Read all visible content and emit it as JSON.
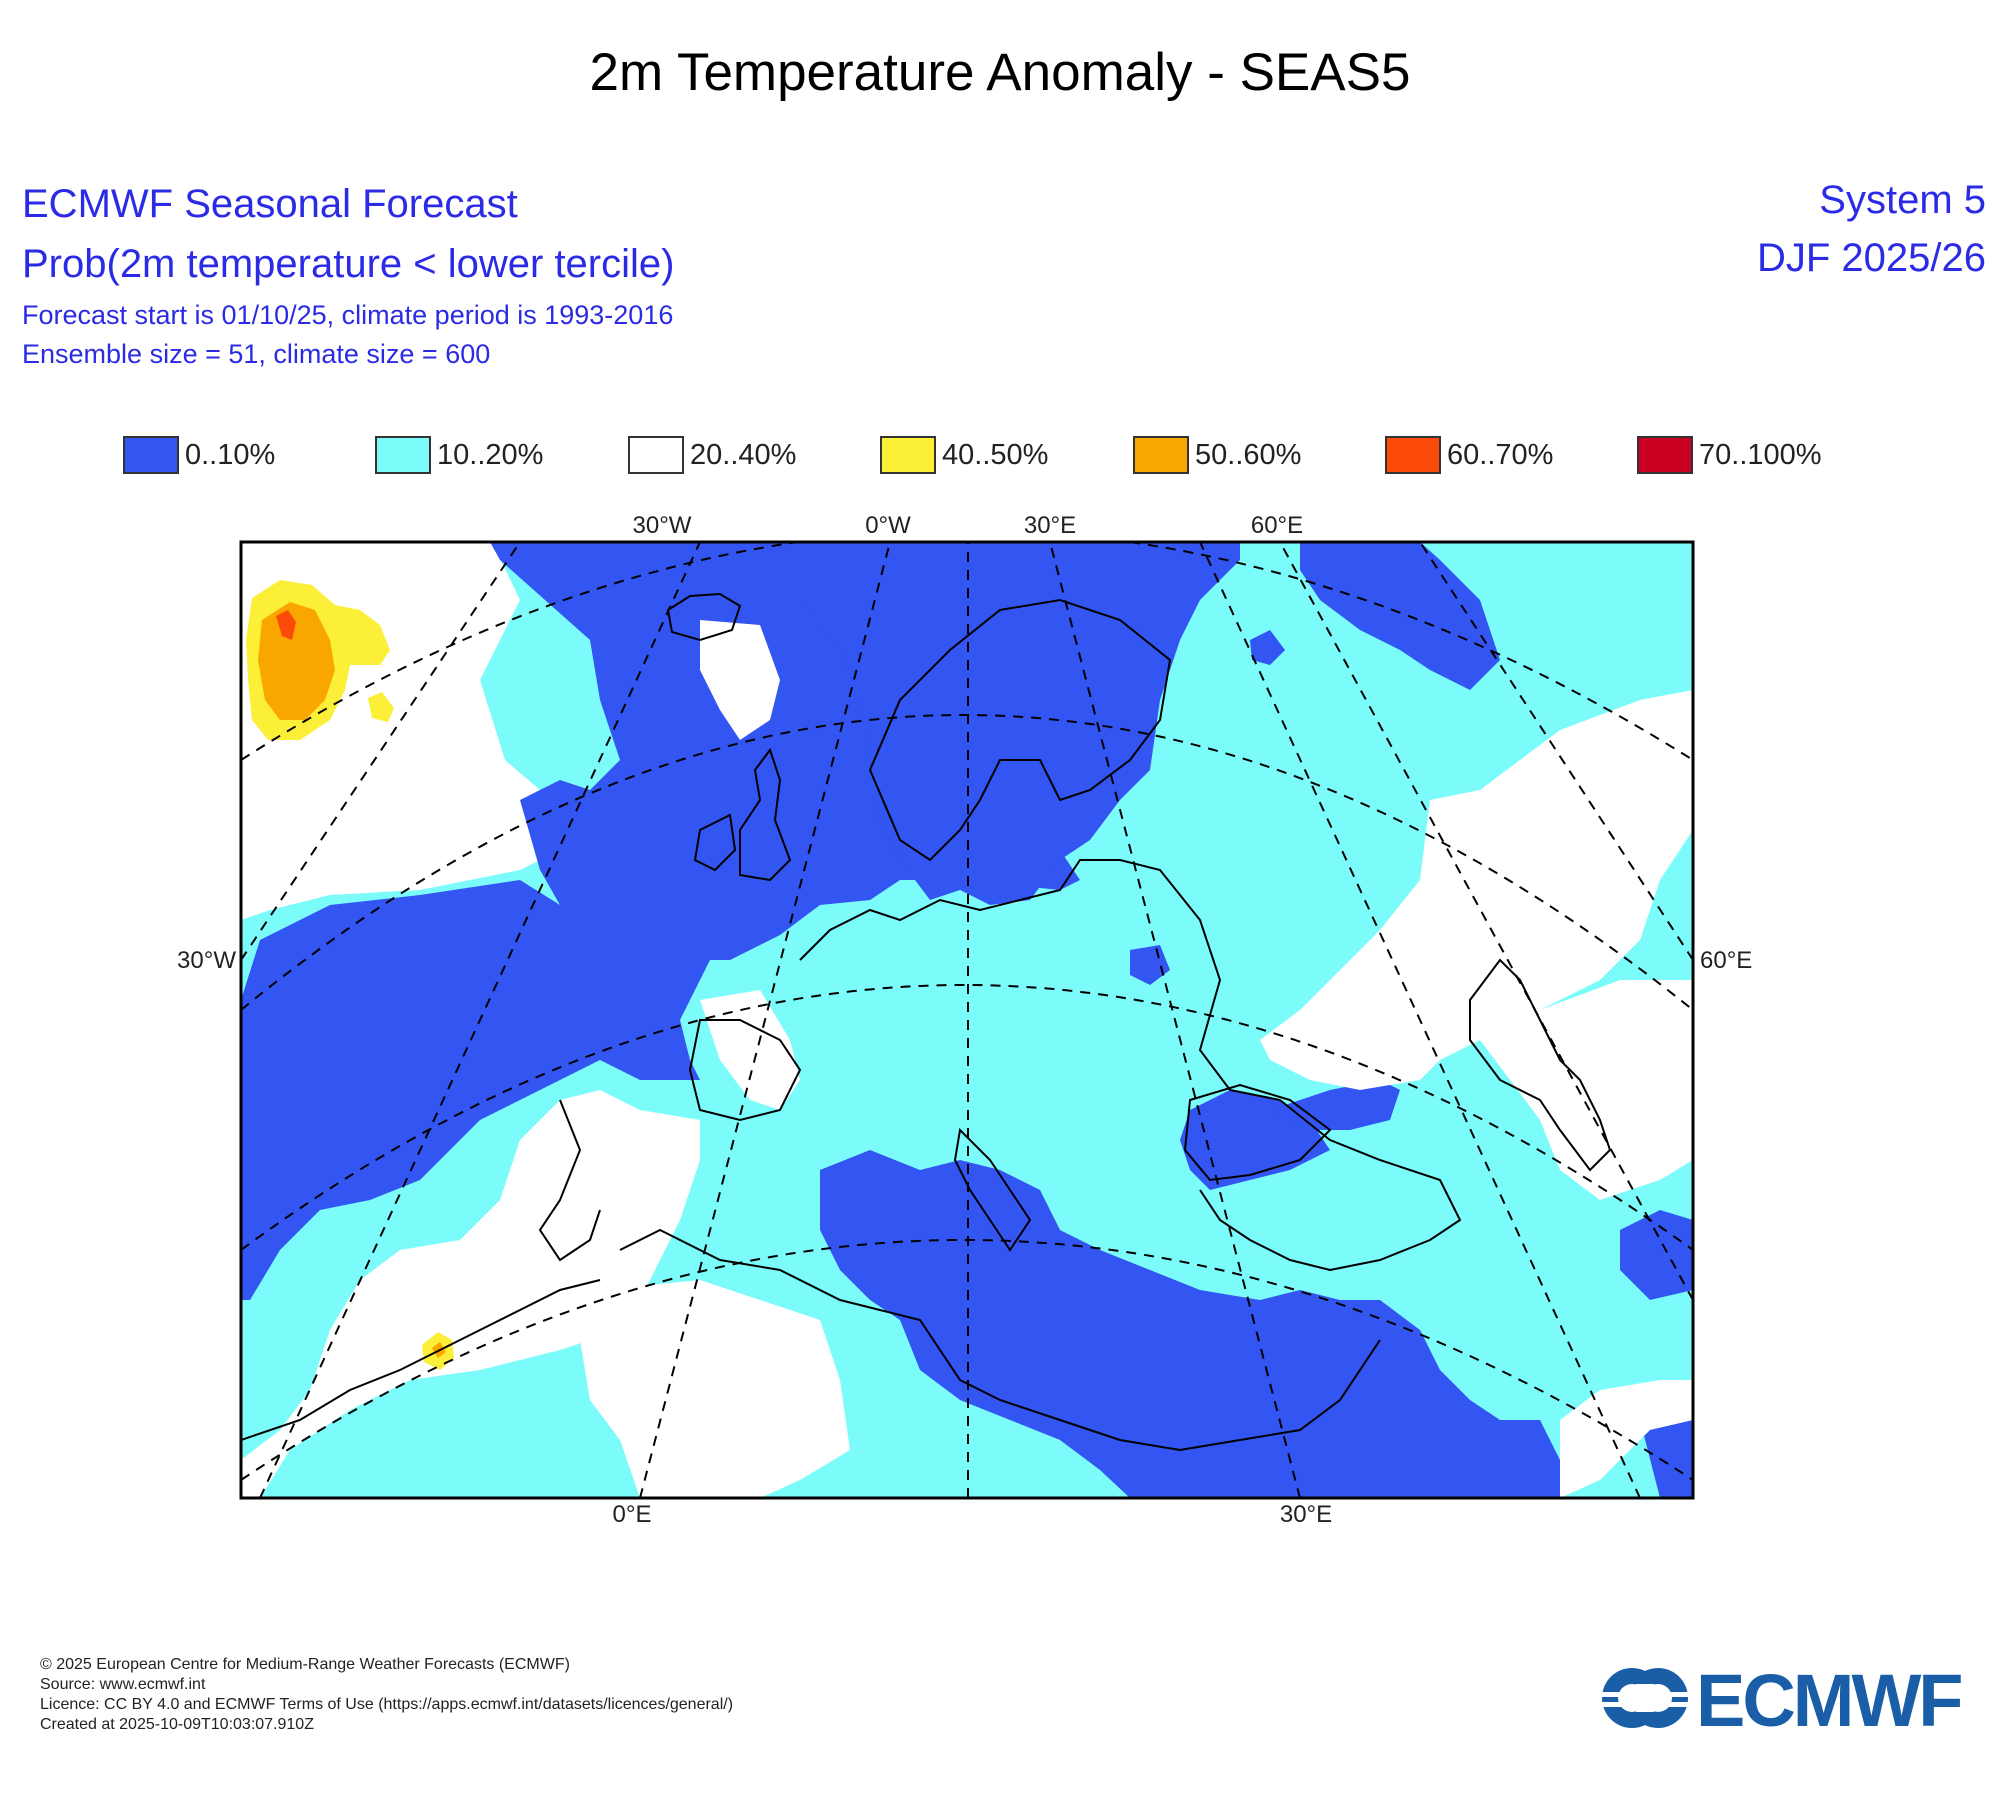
{
  "title": "2m Temperature Anomaly - SEAS5",
  "header": {
    "line1": "ECMWF Seasonal Forecast",
    "line2": "Prob(2m temperature < lower tercile)",
    "line3": "Forecast start is 01/10/25, climate period is 1993-2016",
    "line4": "Ensemble size = 51, climate size = 600",
    "system": "System 5",
    "period": "DJF 2025/26"
  },
  "legend": [
    {
      "label": "0..10%",
      "color": "#3355f2"
    },
    {
      "label": "10..20%",
      "color": "#7bfcfb"
    },
    {
      "label": "20..40%",
      "color": "#ffffff"
    },
    {
      "label": "40..50%",
      "color": "#fcef38"
    },
    {
      "label": "50..60%",
      "color": "#f9a600"
    },
    {
      "label": "60..70%",
      "color": "#fb4a09"
    },
    {
      "label": "70..100%",
      "color": "#cc0022"
    }
  ],
  "axis_labels": {
    "top": [
      "30°W",
      "0°W",
      "30°E",
      "60°E"
    ],
    "left": "30°W",
    "right": "60°E",
    "bottom": [
      "0°E",
      "30°E"
    ]
  },
  "footer": {
    "copyright": "© 2025 European Centre for Medium-Range Weather Forecasts (ECMWF)",
    "source": "Source: www.ecmwf.int",
    "licence": "Licence: CC BY 4.0 and ECMWF Terms of Use (https://apps.ecmwf.int/datasets/licences/general/)",
    "created": "Created at 2025-10-09T10:03:07.910Z"
  },
  "logo_text": "ECMWF"
}
